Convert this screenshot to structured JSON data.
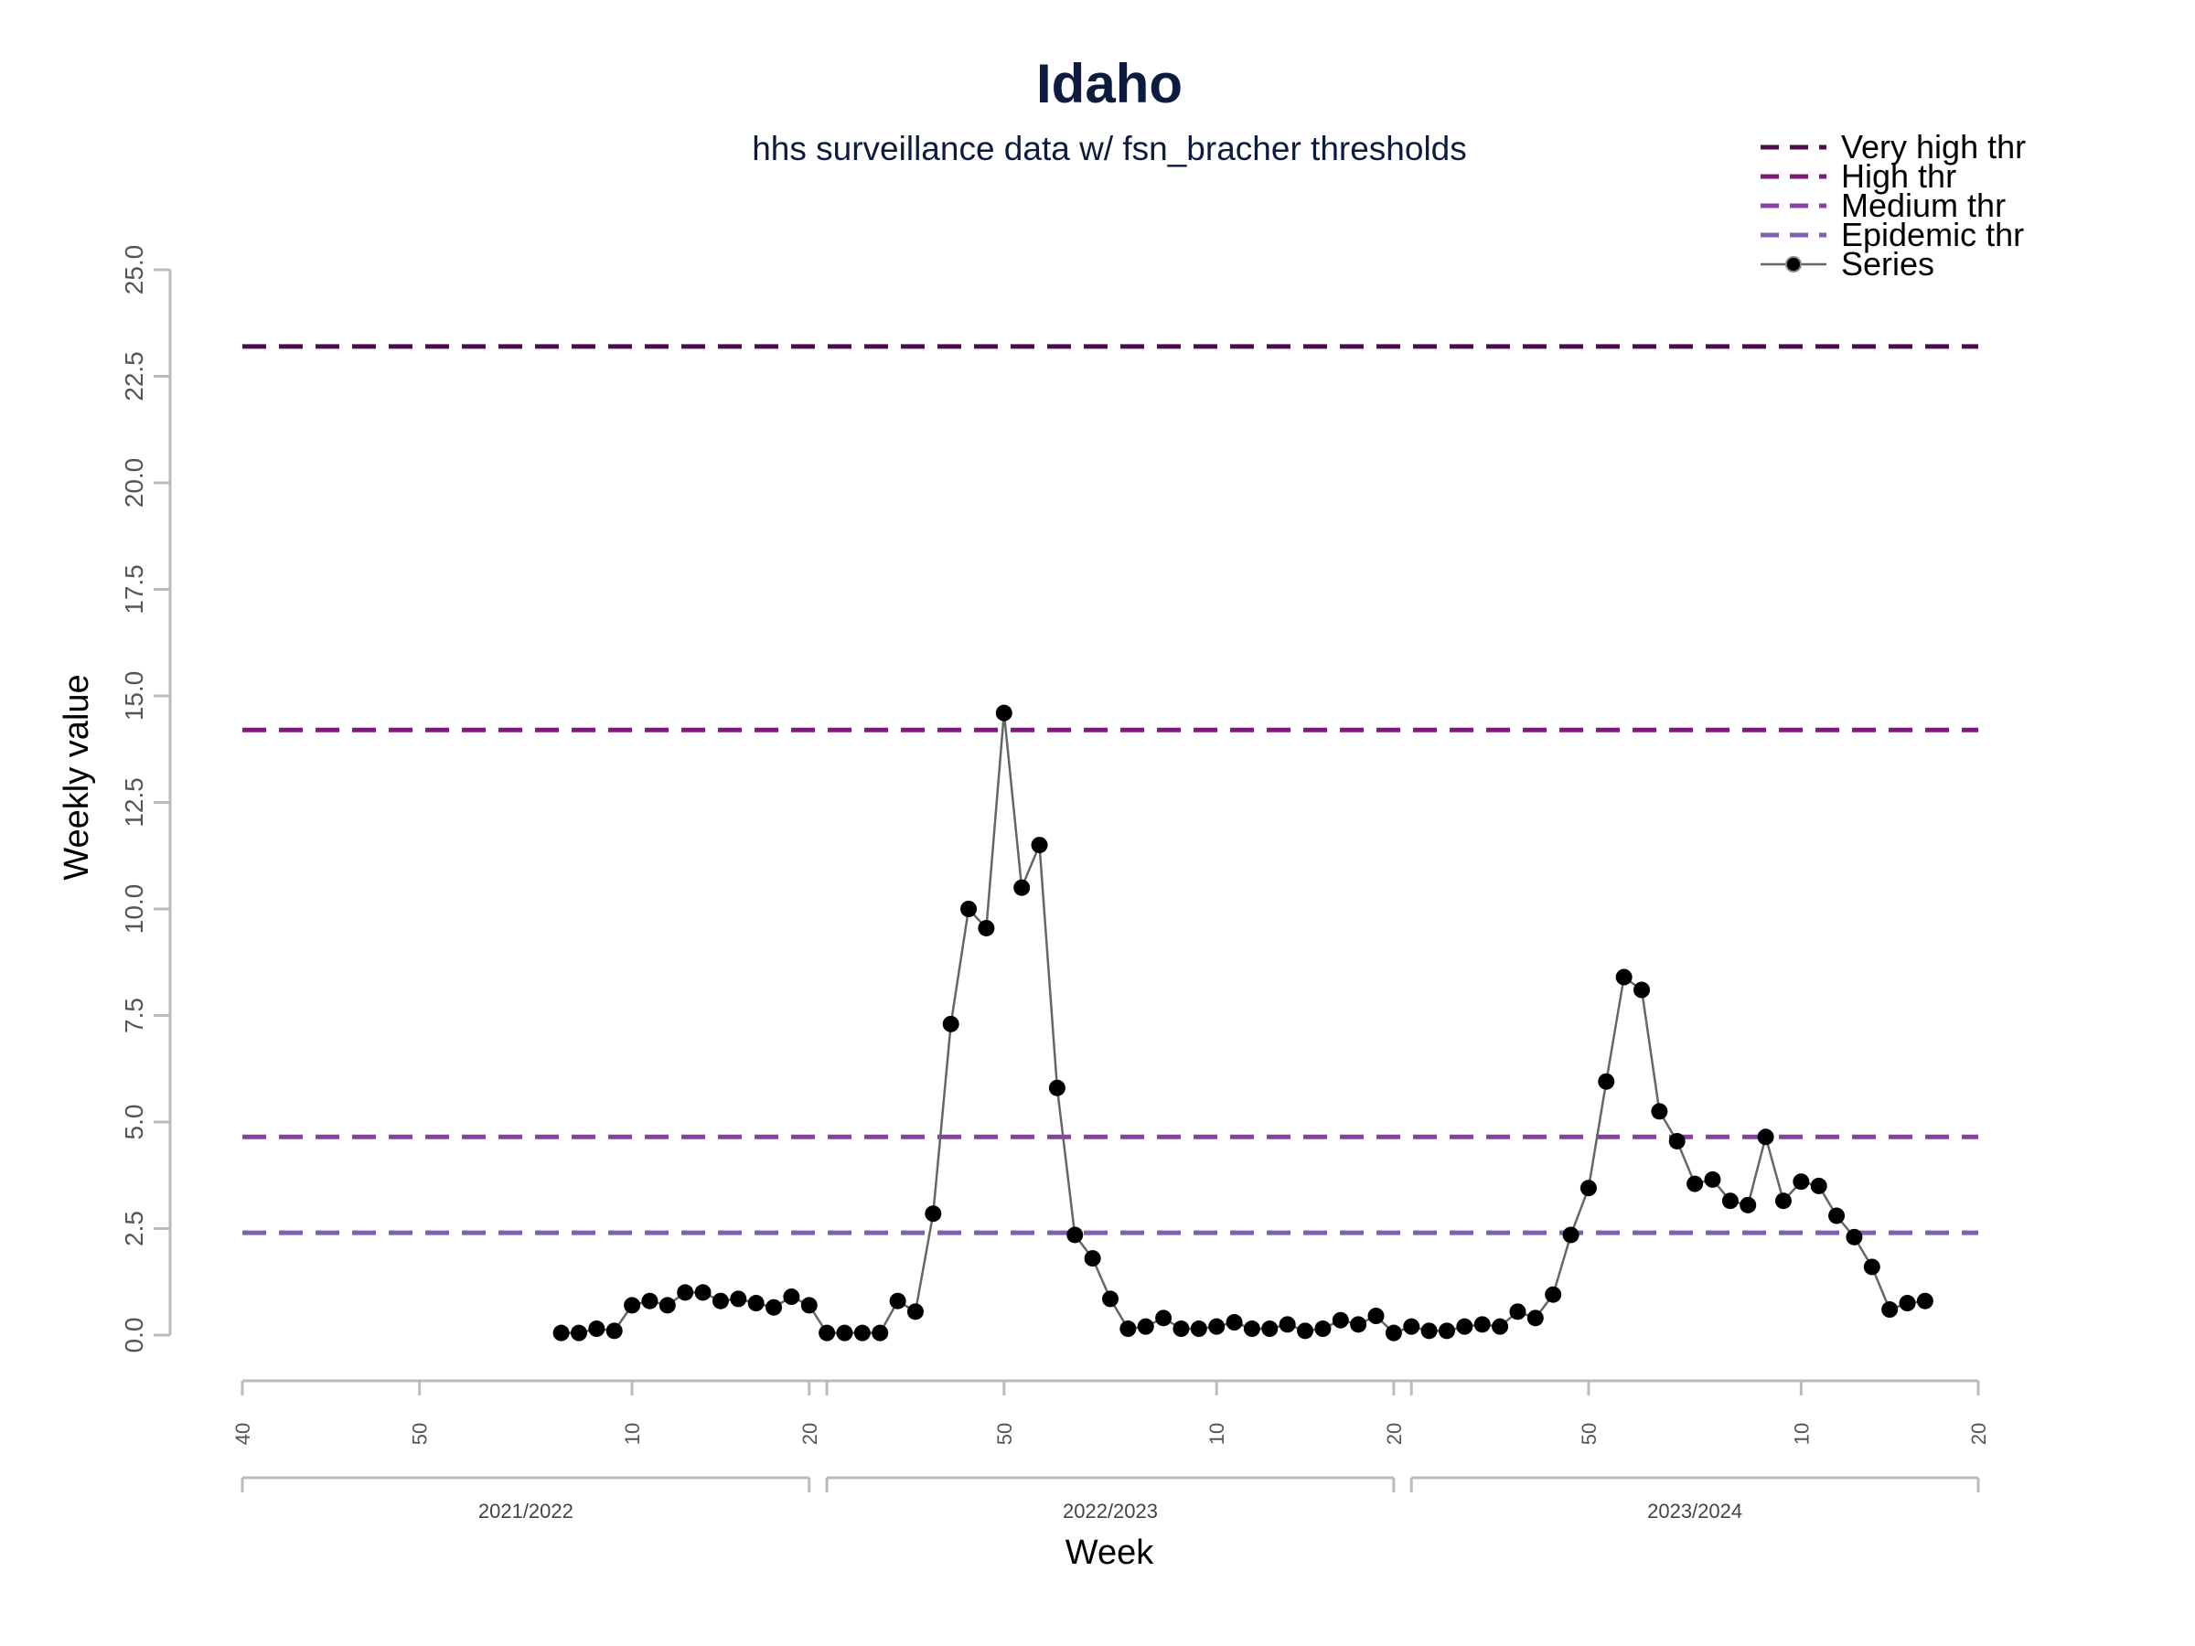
{
  "chart_data": {
    "type": "line",
    "title": "Idaho",
    "subtitle": "hhs surveillance data w/ fsn_bracher thresholds",
    "xlabel": "Week",
    "ylabel": "Weekly value",
    "ylim": [
      0,
      25
    ],
    "yticks": [
      "0.0",
      "2.5",
      "5.0",
      "7.5",
      "10.0",
      "12.5",
      "15.0",
      "17.5",
      "20.0",
      "22.5",
      "25.0"
    ],
    "xlim": [
      0,
      98
    ],
    "xticks": [
      {
        "pos": 0,
        "label": "40"
      },
      {
        "pos": 10,
        "label": "50"
      },
      {
        "pos": 22,
        "label": "10"
      },
      {
        "pos": 32,
        "label": "20"
      },
      {
        "pos": 33,
        "label": ""
      },
      {
        "pos": 43,
        "label": "50"
      },
      {
        "pos": 55,
        "label": "10"
      },
      {
        "pos": 65,
        "label": "20"
      },
      {
        "pos": 66,
        "label": ""
      },
      {
        "pos": 76,
        "label": "50"
      },
      {
        "pos": 88,
        "label": "10"
      },
      {
        "pos": 98,
        "label": "20"
      }
    ],
    "seasons": [
      {
        "label": "2021/2022",
        "start": 0,
        "end": 32
      },
      {
        "label": "2022/2023",
        "start": 33,
        "end": 65
      },
      {
        "label": "2023/2024",
        "start": 66,
        "end": 98
      }
    ],
    "thresholds": [
      {
        "name": "Very high thr",
        "value": 23.2,
        "color": "#4a0d4a"
      },
      {
        "name": "High thr",
        "value": 14.2,
        "color": "#7b1a7b"
      },
      {
        "name": "Medium thr",
        "value": 4.65,
        "color": "#8c3fa6"
      },
      {
        "name": "Epidemic thr",
        "value": 2.4,
        "color": "#8060b0"
      }
    ],
    "series": [
      {
        "name": "Series",
        "color": "#666666",
        "marker_color": "#000000",
        "x_start": 18,
        "values": [
          0.05,
          0.05,
          0.15,
          0.1,
          0.7,
          0.8,
          0.7,
          1.0,
          1.0,
          0.8,
          0.85,
          0.75,
          0.65,
          0.9,
          0.7,
          0.05,
          0.05,
          0.05,
          0.05,
          0.8,
          0.55,
          2.85,
          7.3,
          10.0,
          9.55,
          14.6,
          10.5,
          11.5,
          5.8,
          2.35,
          1.8,
          0.85,
          0.15,
          0.2,
          0.4,
          0.15,
          0.15,
          0.2,
          0.3,
          0.15,
          0.15,
          0.25,
          0.1,
          0.15,
          0.35,
          0.25,
          0.45,
          0.05,
          0.2,
          0.1,
          0.1,
          0.2,
          0.25,
          0.2,
          0.55,
          0.4,
          0.95,
          2.35,
          3.45,
          5.95,
          8.4,
          8.1,
          5.25,
          4.55,
          3.55,
          3.65,
          3.15,
          3.05,
          4.65,
          3.15,
          3.6,
          3.5,
          2.8,
          2.3,
          1.6,
          0.6,
          0.75,
          0.8
        ]
      }
    ],
    "legend": {
      "placement": "top-right",
      "entries": [
        "Very high thr",
        "High thr",
        "Medium thr",
        "Epidemic thr",
        "Series"
      ]
    }
  }
}
